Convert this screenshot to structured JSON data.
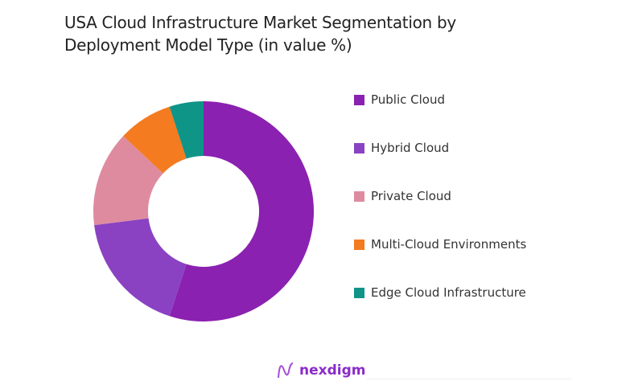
{
  "chart_data": {
    "type": "pie",
    "donut": true,
    "title": "USA Cloud Infrastructure Market Segmentation by Deployment Model Type (in value %)",
    "categories": [
      "Public Cloud",
      "Hybrid Cloud",
      "Private Cloud",
      "Multi-Cloud Environments",
      "Edge Cloud Infrastructure"
    ],
    "values": [
      55,
      18,
      14,
      8,
      5
    ],
    "colors": [
      "#8b21b0",
      "#8a42c2",
      "#de8ba0",
      "#f47b20",
      "#0f9488"
    ],
    "legend_position": "right"
  },
  "brand": {
    "logo_text": "nexdigm"
  }
}
